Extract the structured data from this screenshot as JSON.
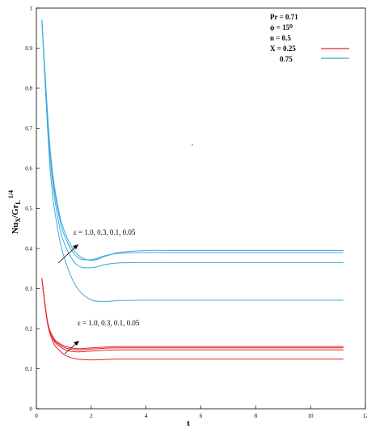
{
  "chart_data": {
    "type": "line",
    "xlabel": "t",
    "ylabel_main": "Nu",
    "ylabel_sub1": "X",
    "ylabel_mid": "/Gr",
    "ylabel_sub2": "L",
    "ylabel_sup": "1/4",
    "xlim": [
      0,
      12
    ],
    "ylim": [
      0,
      1
    ],
    "xticks": [
      "0",
      "2",
      "4",
      "6",
      "8",
      "10",
      "12"
    ],
    "yticks": [
      "0",
      "0.1",
      "0.2",
      "0.3",
      "0.4",
      "0.5",
      "0.6",
      "0.7",
      "0.8",
      "0.9",
      "1"
    ],
    "params": [
      {
        "label": "Pr",
        "value": "0.71"
      },
      {
        "label": "ϕ",
        "value": "15⁰"
      },
      {
        "label": "n",
        "value": "0.5"
      },
      {
        "label": "X",
        "value": "0.25"
      }
    ],
    "legend_x2_value": "0.75",
    "annotations": [
      {
        "text": "ε  =  1.0,  0.3, 0.1, 0.05"
      },
      {
        "text": "ε =   1.0, 0.3, 0.1, 0.05"
      }
    ],
    "colors": {
      "x025": "#e8232b",
      "x075": "#3fa9dd"
    },
    "series": [
      {
        "group": "X = 0.75",
        "epsilon": "1.0",
        "color": "#3fa9dd",
        "x": [
          0.2,
          0.5,
          0.8,
          1.1,
          1.5,
          2.0,
          2.5,
          3.0,
          4.0,
          5.0,
          6.0,
          8.0,
          10.0,
          11.2
        ],
        "y": [
          0.97,
          0.65,
          0.5,
          0.43,
          0.385,
          0.37,
          0.38,
          0.39,
          0.395,
          0.395,
          0.395,
          0.395,
          0.395,
          0.395
        ]
      },
      {
        "group": "X = 0.75",
        "epsilon": "0.3",
        "color": "#3fa9dd",
        "x": [
          0.2,
          0.5,
          0.8,
          1.1,
          1.5,
          2.0,
          2.5,
          3.0,
          4.0,
          5.0,
          6.0,
          8.0,
          10.0,
          11.2
        ],
        "y": [
          0.97,
          0.64,
          0.49,
          0.42,
          0.378,
          0.372,
          0.382,
          0.388,
          0.39,
          0.39,
          0.39,
          0.39,
          0.39,
          0.39
        ]
      },
      {
        "group": "X = 0.75",
        "epsilon": "0.1",
        "color": "#3fa9dd",
        "x": [
          0.2,
          0.5,
          0.8,
          1.1,
          1.5,
          2.0,
          2.5,
          3.0,
          4.0,
          5.0,
          6.0,
          8.0,
          10.0,
          11.2
        ],
        "y": [
          0.97,
          0.63,
          0.47,
          0.4,
          0.358,
          0.352,
          0.36,
          0.364,
          0.365,
          0.365,
          0.365,
          0.365,
          0.365,
          0.365
        ]
      },
      {
        "group": "X = 0.75",
        "epsilon": "0.05",
        "color": "#3fa9dd",
        "x": [
          0.2,
          0.5,
          0.8,
          1.1,
          1.5,
          2.0,
          2.5,
          3.0,
          4.0,
          5.0,
          6.0,
          8.0,
          10.0,
          11.2
        ],
        "y": [
          0.97,
          0.6,
          0.44,
          0.36,
          0.3,
          0.272,
          0.268,
          0.27,
          0.271,
          0.271,
          0.271,
          0.271,
          0.271,
          0.271
        ]
      },
      {
        "group": "X = 0.25",
        "epsilon": "1.0",
        "color": "#e8232b",
        "x": [
          0.2,
          0.4,
          0.6,
          0.8,
          1.1,
          1.5,
          2.0,
          2.5,
          3.0,
          4.0,
          6.0,
          8.0,
          10.0,
          11.2
        ],
        "y": [
          0.325,
          0.22,
          0.18,
          0.165,
          0.155,
          0.15,
          0.152,
          0.154,
          0.155,
          0.155,
          0.155,
          0.155,
          0.155,
          0.155
        ]
      },
      {
        "group": "X = 0.25",
        "epsilon": "0.3",
        "color": "#e8232b",
        "x": [
          0.2,
          0.4,
          0.6,
          0.8,
          1.1,
          1.5,
          2.0,
          2.5,
          3.0,
          4.0,
          6.0,
          8.0,
          10.0,
          11.2
        ],
        "y": [
          0.325,
          0.22,
          0.178,
          0.162,
          0.151,
          0.147,
          0.149,
          0.151,
          0.152,
          0.152,
          0.152,
          0.152,
          0.152,
          0.152
        ]
      },
      {
        "group": "X = 0.25",
        "epsilon": "0.1",
        "color": "#e8232b",
        "x": [
          0.2,
          0.4,
          0.6,
          0.8,
          1.1,
          1.5,
          2.0,
          2.5,
          3.0,
          4.0,
          6.0,
          8.0,
          10.0,
          11.2
        ],
        "y": [
          0.325,
          0.218,
          0.175,
          0.158,
          0.146,
          0.142,
          0.144,
          0.146,
          0.147,
          0.147,
          0.147,
          0.147,
          0.147,
          0.147
        ]
      },
      {
        "group": "X = 0.25",
        "epsilon": "0.05",
        "color": "#e8232b",
        "x": [
          0.2,
          0.4,
          0.6,
          0.8,
          1.1,
          1.5,
          2.0,
          2.5,
          3.0,
          4.0,
          6.0,
          8.0,
          10.0,
          11.2
        ],
        "y": [
          0.325,
          0.215,
          0.168,
          0.148,
          0.132,
          0.124,
          0.122,
          0.123,
          0.124,
          0.124,
          0.124,
          0.124,
          0.124,
          0.124
        ]
      }
    ]
  }
}
